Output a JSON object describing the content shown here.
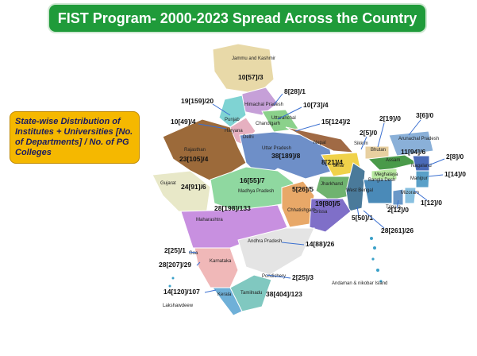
{
  "header": {
    "title": "FIST Program- 2000-2023 Spread Across the Country"
  },
  "legend_box": {
    "text": "State-wise Distribution of Institutes + Universities [No. of Departments] / No. of PG Colleges"
  },
  "regions": [
    "Jammu and Kashmir",
    "Himachal Pradesh",
    "Punjab",
    "Chandigarh",
    "Haryana",
    "Uttaranchal",
    "Delhi",
    "Rajasthan",
    "Uttar Pradesh",
    "Nepal",
    "Bihar",
    "Sikkim",
    "Bhutan",
    "Arunachal Pradesh",
    "Assam",
    "Nagaland",
    "Meghalaya",
    "Manipur",
    "Mizoram",
    "Tripura",
    "Bangla Desh",
    "West Bengal",
    "Jharkhand",
    "Gujarat",
    "Madhya Pradesh",
    "Chhatishgarh",
    "Orissa",
    "Maharashtra",
    "Andhra Pradesh",
    "Goa",
    "Karnataka",
    "Pondichery",
    "Tamilnadu",
    "Kerala",
    "Lakshawdeew",
    "Andaman & nikobar Island"
  ],
  "stats": [
    "10[57]/3",
    "8[28]/1",
    "19[159]/20",
    "10[73]/4",
    "10[49]/4",
    "15[124]/2",
    "2[5]/0",
    "2[19]/0",
    "3[6]/0",
    "23[105]/4",
    "38[189]/8",
    "8[21]/4",
    "11[94]/6",
    "2[8]/0",
    "1[14]/0",
    "24[91]/6",
    "16[55]/7",
    "5[26]/5",
    "19[80]/5",
    "1[12]/0",
    "2[12]/0",
    "5[50]/1",
    "28[261]/26",
    "28[198]/133",
    "14[88]/26",
    "2[25]/1",
    "28[207]/29",
    "2[25]/3",
    "14[120]/107",
    "38[404]/123"
  ]
}
